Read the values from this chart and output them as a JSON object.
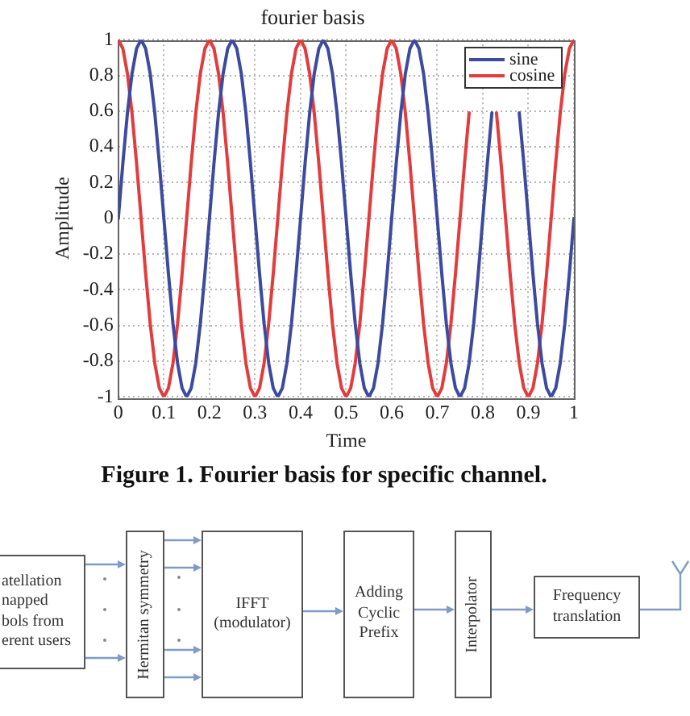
{
  "chart_data": {
    "type": "line",
    "title": "fourier basis",
    "xlabel": "Time",
    "ylabel": "Amplitude",
    "x": [
      0,
      0.01,
      0.02,
      0.03,
      0.04,
      0.05,
      0.06,
      0.07,
      0.08,
      0.09,
      0.1,
      0.11,
      0.12,
      0.13,
      0.14,
      0.15,
      0.16,
      0.17,
      0.18,
      0.19,
      0.2,
      0.21,
      0.22,
      0.23,
      0.24,
      0.25,
      0.26,
      0.27,
      0.28,
      0.29,
      0.3,
      0.31,
      0.32,
      0.33,
      0.34,
      0.35,
      0.36,
      0.37,
      0.38,
      0.39,
      0.4,
      0.41,
      0.42,
      0.43,
      0.44,
      0.45,
      0.46,
      0.47,
      0.48,
      0.49,
      0.5,
      0.51,
      0.52,
      0.53,
      0.54,
      0.55,
      0.56,
      0.57,
      0.58,
      0.59,
      0.6,
      0.61,
      0.62,
      0.63,
      0.64,
      0.65,
      0.66,
      0.67,
      0.68,
      0.69,
      0.7,
      0.71,
      0.72,
      0.73,
      0.74,
      0.75,
      0.76,
      0.77,
      0.78,
      0.79,
      0.8,
      0.81,
      0.82,
      0.83,
      0.84,
      0.85,
      0.86,
      0.87,
      0.88,
      0.89,
      0.9,
      0.91,
      0.92,
      0.93,
      0.94,
      0.95,
      0.96,
      0.97,
      0.98,
      0.99,
      1
    ],
    "series": [
      {
        "name": "sine",
        "color": "#3c4aa0",
        "values": [
          0,
          0.31,
          0.59,
          0.81,
          0.95,
          1,
          0.95,
          0.81,
          0.59,
          0.31,
          0,
          -0.31,
          -0.59,
          -0.81,
          -0.95,
          -1,
          -0.95,
          -0.81,
          -0.59,
          -0.31,
          0,
          0.31,
          0.59,
          0.81,
          0.95,
          1,
          0.95,
          0.81,
          0.59,
          0.31,
          0,
          -0.31,
          -0.59,
          -0.81,
          -0.95,
          -1,
          -0.95,
          -0.81,
          -0.59,
          -0.31,
          0,
          0.31,
          0.59,
          0.81,
          0.95,
          1,
          0.95,
          0.81,
          0.59,
          0.31,
          0,
          -0.31,
          -0.59,
          -0.81,
          -0.95,
          -1,
          -0.95,
          -0.81,
          -0.59,
          -0.31,
          0,
          0.31,
          0.59,
          0.81,
          0.95,
          1,
          0.95,
          0.81,
          0.59,
          0.31,
          0,
          -0.31,
          -0.59,
          -0.81,
          -0.95,
          -1,
          -0.95,
          -0.81,
          -0.59,
          -0.31,
          0,
          0.31,
          0.59,
          null,
          null,
          null,
          null,
          null,
          0.59,
          0.31,
          0,
          -0.31,
          -0.59,
          -0.81,
          -0.95,
          -1,
          -0.95,
          -0.81,
          -0.59,
          -0.31,
          0
        ]
      },
      {
        "name": "cosine",
        "color": "#e23c3c",
        "values": [
          1,
          0.95,
          0.81,
          0.59,
          0.31,
          0,
          -0.31,
          -0.59,
          -0.81,
          -0.95,
          -1,
          -0.95,
          -0.81,
          -0.59,
          -0.31,
          0,
          0.31,
          0.59,
          0.81,
          0.95,
          1,
          0.95,
          0.81,
          0.59,
          0.31,
          0,
          -0.31,
          -0.59,
          -0.81,
          -0.95,
          -1,
          -0.95,
          -0.81,
          -0.59,
          -0.31,
          0,
          0.31,
          0.59,
          0.81,
          0.95,
          1,
          0.95,
          0.81,
          0.59,
          0.31,
          0,
          -0.31,
          -0.59,
          -0.81,
          -0.95,
          -1,
          -0.95,
          -0.81,
          -0.59,
          -0.31,
          0,
          0.31,
          0.59,
          0.81,
          0.95,
          1,
          0.95,
          0.81,
          0.59,
          0.31,
          0,
          -0.31,
          -0.59,
          -0.81,
          -0.95,
          -1,
          -0.95,
          -0.81,
          -0.59,
          -0.31,
          0,
          0.31,
          0.59,
          null,
          null,
          null,
          null,
          null,
          0.59,
          0.31,
          0,
          -0.31,
          -0.59,
          -0.81,
          -0.95,
          -1,
          -0.95,
          -0.81,
          -0.59,
          -0.31,
          0,
          0.31,
          0.59,
          0.81,
          0.95,
          1
        ]
      }
    ],
    "xlim": [
      0,
      1
    ],
    "xticks": [
      0,
      0.1,
      0.2,
      0.3,
      0.4,
      0.5,
      0.6,
      0.7,
      0.8,
      0.9,
      1
    ],
    "ylim": [
      -1,
      1
    ],
    "yticks": [
      -1,
      -0.8,
      -0.6,
      -0.4,
      -0.2,
      0,
      0.2,
      0.4,
      0.6,
      0.8,
      1
    ],
    "grid": true,
    "legend": "top right",
    "line_style": "solid",
    "annotations": [
      "Figure 1. Fourier basis for specific channel.",
      "atellation\nnapped\nbols from\nerent users",
      "Hermitan symmetry",
      "IFFT\n(modulator)",
      "Adding\nCyclic\nPrefix",
      "Interpolator",
      "Frequency\ntranslation"
    ]
  }
}
